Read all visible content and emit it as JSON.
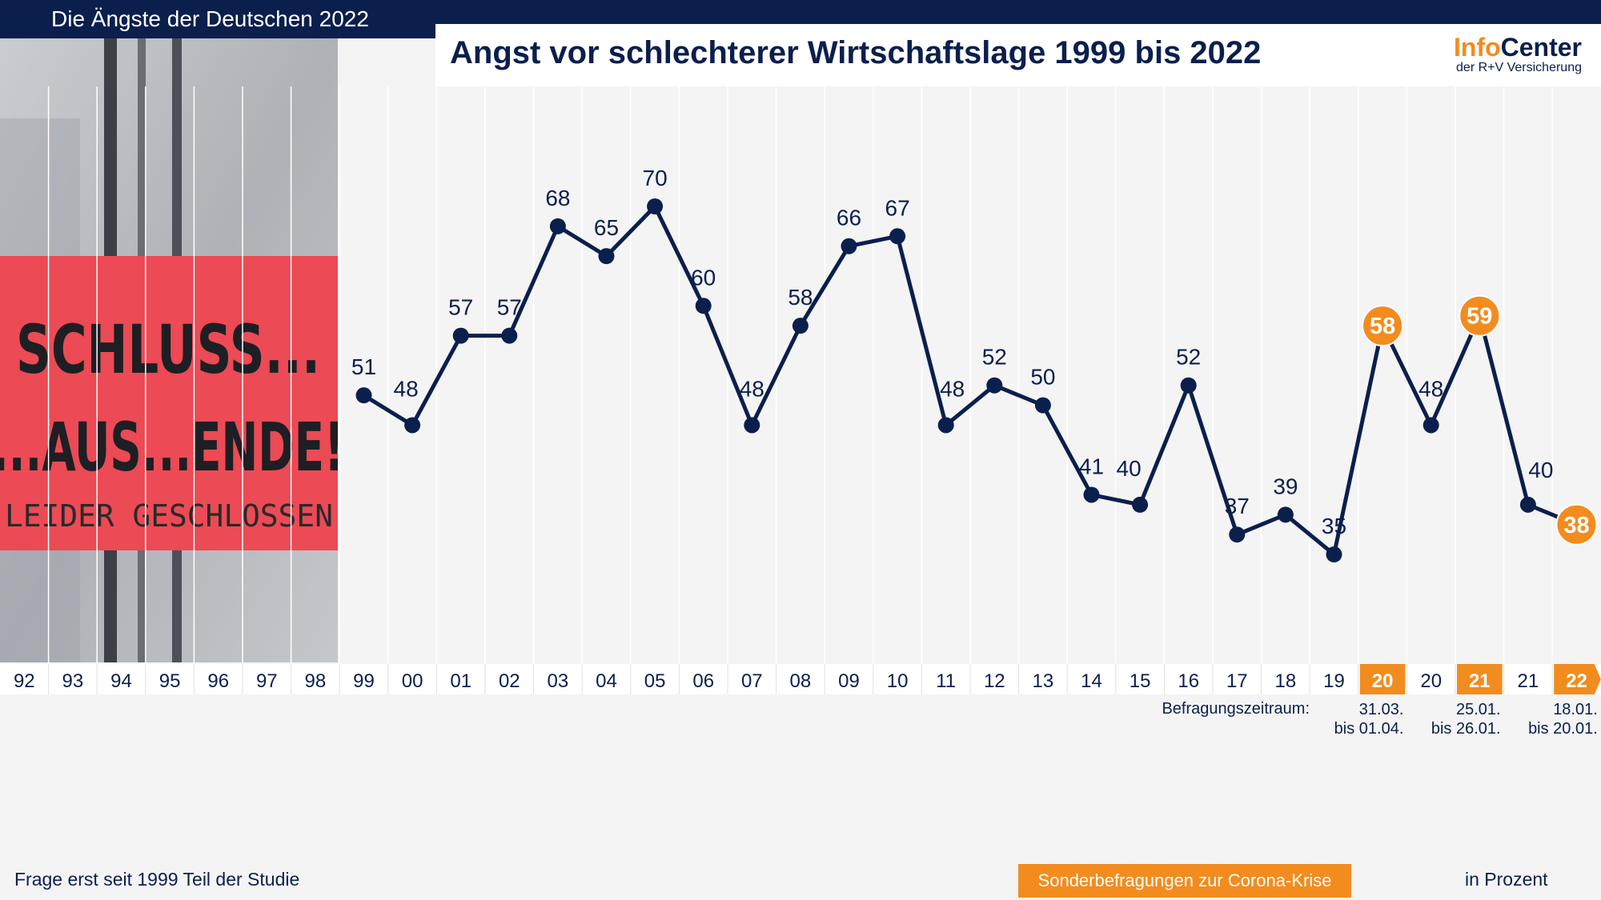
{
  "header": {
    "series_tag": "Die Ängste der Deutschen 2022",
    "title": "Angst vor schlechterer Wirtschaftslage 1999 bis 2022",
    "logo_main_a": "Info",
    "logo_main_b": "Center",
    "logo_sub": "der R+V Versicherung"
  },
  "photo": {
    "line1": "SCHLUSS...",
    "line2": "...AUS...ENDE!",
    "line3": "LEIDER GESCHLOSSEN"
  },
  "colors": {
    "navy": "#0b1f4d",
    "orange": "#f28c1e",
    "sign_red": "#ec4a55"
  },
  "chart_data": {
    "type": "line",
    "categories": [
      "92",
      "93",
      "94",
      "95",
      "96",
      "97",
      "98",
      "99",
      "00",
      "01",
      "02",
      "03",
      "04",
      "05",
      "06",
      "07",
      "08",
      "09",
      "10",
      "11",
      "12",
      "13",
      "14",
      "15",
      "16",
      "17",
      "18",
      "19",
      "20",
      "20",
      "21",
      "21",
      "22"
    ],
    "highlight": [
      false,
      false,
      false,
      false,
      false,
      false,
      false,
      false,
      false,
      false,
      false,
      false,
      false,
      false,
      false,
      false,
      false,
      false,
      false,
      false,
      false,
      false,
      false,
      false,
      false,
      false,
      false,
      false,
      true,
      false,
      true,
      false,
      true
    ],
    "series": [
      {
        "values": [
          null,
          null,
          null,
          null,
          null,
          null,
          null,
          51,
          48,
          57,
          57,
          68,
          65,
          70,
          60,
          48,
          58,
          66,
          67,
          48,
          52,
          50,
          41,
          40,
          52,
          37,
          39,
          35,
          58,
          48,
          59,
          40,
          38
        ]
      }
    ],
    "ylim": [
      0,
      100
    ],
    "grid": true
  },
  "periods": {
    "label": "Befragungszeitraum:",
    "items": [
      {
        "category_index": 28,
        "line1": "31.03.",
        "line2": "bis 01.04."
      },
      {
        "category_index": 30,
        "line1": "25.01.",
        "line2": "bis 26.01."
      },
      {
        "category_index": 32,
        "line1": "18.01.",
        "line2": "bis 20.01."
      }
    ]
  },
  "footer": {
    "note": "Frage erst seit 1999 Teil der Studie",
    "corona": "Sonderbefragungen zur Corona-Krise",
    "unit": "in Prozent"
  }
}
